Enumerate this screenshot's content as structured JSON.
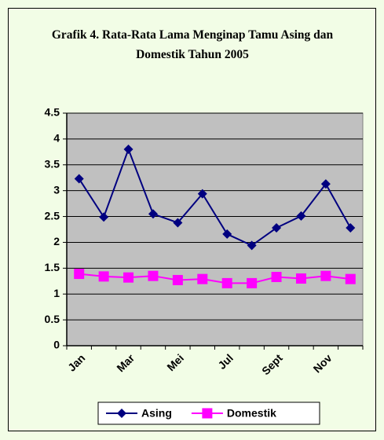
{
  "chart_data": {
    "type": "line",
    "title": "Grafik 4. Rata-Rata Lama Menginap Tamu Asing dan Domestik Tahun 2005",
    "categories": [
      "Jan",
      null,
      "Mar",
      null,
      "Mei",
      null,
      "Jul",
      null,
      "Sept",
      null,
      "Nov",
      null
    ],
    "series": [
      {
        "name": "Asing",
        "color": "#000080",
        "marker": "diamond",
        "values": [
          3.23,
          2.49,
          3.8,
          2.55,
          2.38,
          2.94,
          2.16,
          1.94,
          2.28,
          2.51,
          3.13,
          2.28
        ]
      },
      {
        "name": "Domestik",
        "color": "#ff00ff",
        "marker": "square",
        "values": [
          1.39,
          1.34,
          1.32,
          1.35,
          1.27,
          1.29,
          1.21,
          1.21,
          1.33,
          1.3,
          1.35,
          1.29
        ]
      }
    ],
    "ylim": [
      0,
      4.5
    ],
    "yticks": [
      0,
      0.5,
      1,
      1.5,
      2,
      2.5,
      3,
      3.5,
      4,
      4.5
    ],
    "grid": true,
    "plot_background": "#c0c0c0",
    "legend": "bottom"
  }
}
